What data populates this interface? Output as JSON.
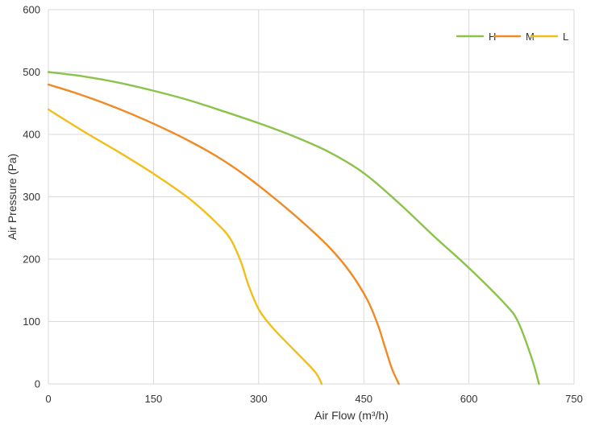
{
  "chart_data": {
    "type": "line",
    "title": "",
    "xlabel": "Air Flow  (m³/h)",
    "ylabel": "Air Pressure  (Pa)",
    "xlim": [
      0,
      750
    ],
    "ylim": [
      0,
      600
    ],
    "x_ticks": [
      0,
      150,
      300,
      450,
      600,
      750
    ],
    "y_ticks": [
      0,
      100,
      200,
      300,
      400,
      500,
      600
    ],
    "grid": true,
    "legend_position": "top-right",
    "series": [
      {
        "name": "H",
        "color": "#8BC34A",
        "points": [
          [
            0,
            500
          ],
          [
            50,
            493
          ],
          [
            100,
            483
          ],
          [
            150,
            470
          ],
          [
            200,
            455
          ],
          [
            250,
            437
          ],
          [
            300,
            418
          ],
          [
            350,
            397
          ],
          [
            400,
            372
          ],
          [
            450,
            338
          ],
          [
            500,
            290
          ],
          [
            550,
            237
          ],
          [
            600,
            186
          ],
          [
            650,
            130
          ],
          [
            670,
            100
          ],
          [
            690,
            40
          ],
          [
            700,
            0
          ]
        ]
      },
      {
        "name": "M",
        "color": "#F08A24",
        "points": [
          [
            0,
            480
          ],
          [
            40,
            466
          ],
          [
            80,
            450
          ],
          [
            120,
            432
          ],
          [
            160,
            412
          ],
          [
            200,
            390
          ],
          [
            240,
            365
          ],
          [
            280,
            335
          ],
          [
            320,
            300
          ],
          [
            360,
            262
          ],
          [
            400,
            220
          ],
          [
            430,
            180
          ],
          [
            455,
            135
          ],
          [
            470,
            95
          ],
          [
            480,
            60
          ],
          [
            490,
            25
          ],
          [
            500,
            0
          ]
        ]
      },
      {
        "name": "L",
        "color": "#F2BE1A",
        "points": [
          [
            0,
            440
          ],
          [
            50,
            405
          ],
          [
            100,
            372
          ],
          [
            150,
            337
          ],
          [
            200,
            298
          ],
          [
            240,
            258
          ],
          [
            260,
            232
          ],
          [
            275,
            195
          ],
          [
            285,
            160
          ],
          [
            300,
            120
          ],
          [
            320,
            90
          ],
          [
            350,
            55
          ],
          [
            380,
            20
          ],
          [
            390,
            0
          ]
        ]
      }
    ]
  }
}
